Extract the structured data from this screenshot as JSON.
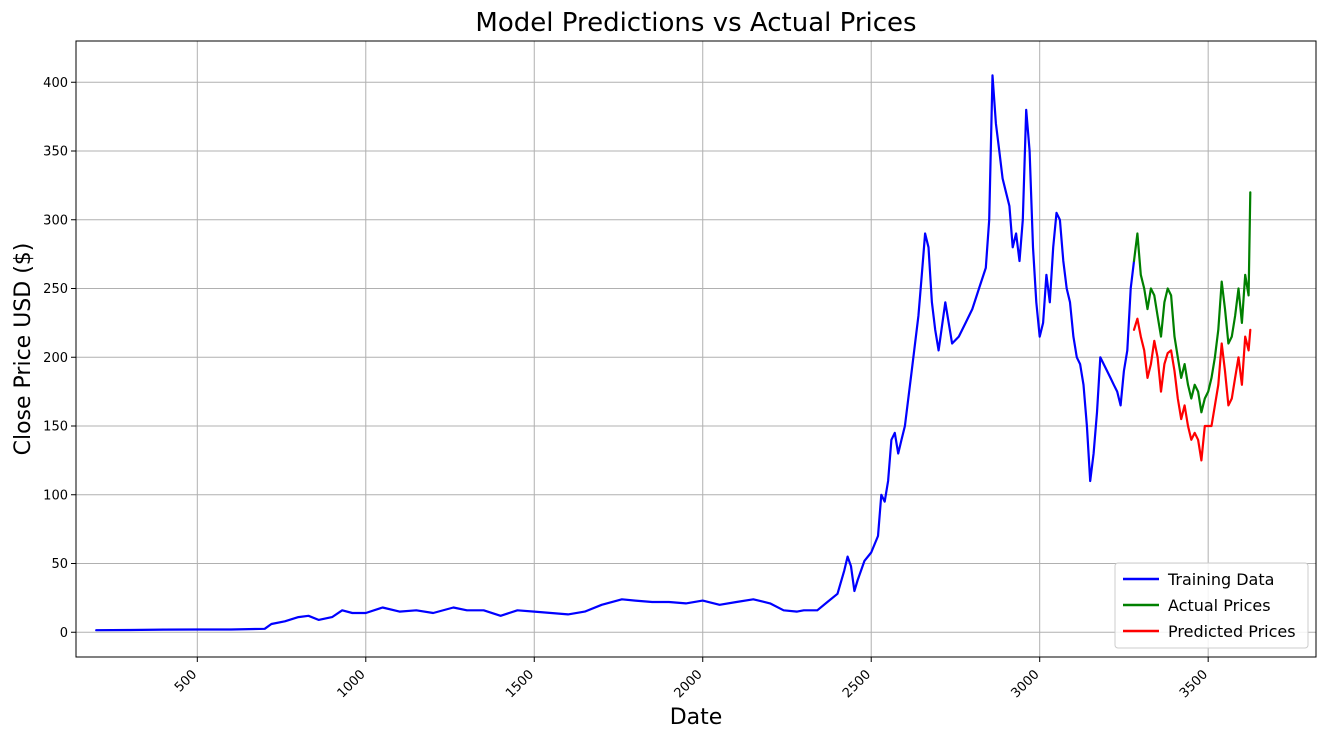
{
  "chart_data": {
    "type": "line",
    "title": "Model Predictions vs Actual Prices",
    "xlabel": "Date",
    "ylabel": "Close Price USD ($)",
    "xlim": [
      140,
      3820
    ],
    "ylim": [
      -18,
      430
    ],
    "xticks": [
      500,
      1000,
      1500,
      2000,
      2500,
      3000,
      3500
    ],
    "yticks": [
      0,
      50,
      100,
      150,
      200,
      250,
      300,
      350,
      400
    ],
    "grid": true,
    "legend_position": "bottom-right",
    "series": [
      {
        "name": "Training Data",
        "color": "#0000ff",
        "points": [
          [
            200,
            1.5
          ],
          [
            300,
            1.6
          ],
          [
            400,
            1.9
          ],
          [
            500,
            2
          ],
          [
            600,
            2
          ],
          [
            700,
            2.5
          ],
          [
            720,
            6
          ],
          [
            760,
            8
          ],
          [
            800,
            11
          ],
          [
            830,
            12
          ],
          [
            860,
            9
          ],
          [
            900,
            11
          ],
          [
            930,
            16
          ],
          [
            960,
            14
          ],
          [
            1000,
            14
          ],
          [
            1050,
            18
          ],
          [
            1100,
            15
          ],
          [
            1150,
            16
          ],
          [
            1200,
            14
          ],
          [
            1260,
            18
          ],
          [
            1300,
            16
          ],
          [
            1350,
            16
          ],
          [
            1400,
            12
          ],
          [
            1450,
            16
          ],
          [
            1500,
            15
          ],
          [
            1600,
            13
          ],
          [
            1650,
            15
          ],
          [
            1700,
            20
          ],
          [
            1760,
            24
          ],
          [
            1800,
            23
          ],
          [
            1850,
            22
          ],
          [
            1900,
            22
          ],
          [
            1950,
            21
          ],
          [
            2000,
            23
          ],
          [
            2050,
            20
          ],
          [
            2100,
            22
          ],
          [
            2150,
            24
          ],
          [
            2200,
            21
          ],
          [
            2240,
            16
          ],
          [
            2280,
            15
          ],
          [
            2300,
            16
          ],
          [
            2340,
            16
          ],
          [
            2370,
            22
          ],
          [
            2400,
            28
          ],
          [
            2420,
            45
          ],
          [
            2430,
            55
          ],
          [
            2440,
            48
          ],
          [
            2450,
            30
          ],
          [
            2460,
            38
          ],
          [
            2470,
            45
          ],
          [
            2480,
            52
          ],
          [
            2500,
            58
          ],
          [
            2520,
            70
          ],
          [
            2530,
            100
          ],
          [
            2540,
            95
          ],
          [
            2550,
            110
          ],
          [
            2560,
            140
          ],
          [
            2570,
            145
          ],
          [
            2580,
            130
          ],
          [
            2590,
            140
          ],
          [
            2600,
            150
          ],
          [
            2620,
            190
          ],
          [
            2640,
            230
          ],
          [
            2650,
            260
          ],
          [
            2660,
            290
          ],
          [
            2670,
            280
          ],
          [
            2680,
            240
          ],
          [
            2690,
            220
          ],
          [
            2700,
            205
          ],
          [
            2720,
            240
          ],
          [
            2740,
            210
          ],
          [
            2760,
            215
          ],
          [
            2780,
            225
          ],
          [
            2800,
            235
          ],
          [
            2820,
            250
          ],
          [
            2840,
            265
          ],
          [
            2850,
            300
          ],
          [
            2860,
            405
          ],
          [
            2870,
            370
          ],
          [
            2880,
            350
          ],
          [
            2890,
            330
          ],
          [
            2900,
            320
          ],
          [
            2910,
            310
          ],
          [
            2920,
            280
          ],
          [
            2930,
            290
          ],
          [
            2940,
            270
          ],
          [
            2950,
            300
          ],
          [
            2960,
            380
          ],
          [
            2970,
            350
          ],
          [
            2980,
            280
          ],
          [
            2990,
            240
          ],
          [
            3000,
            215
          ],
          [
            3010,
            225
          ],
          [
            3020,
            260
          ],
          [
            3030,
            240
          ],
          [
            3040,
            280
          ],
          [
            3050,
            305
          ],
          [
            3060,
            300
          ],
          [
            3070,
            270
          ],
          [
            3080,
            250
          ],
          [
            3090,
            240
          ],
          [
            3100,
            215
          ],
          [
            3110,
            200
          ],
          [
            3120,
            195
          ],
          [
            3130,
            180
          ],
          [
            3140,
            150
          ],
          [
            3150,
            110
          ],
          [
            3160,
            130
          ],
          [
            3170,
            160
          ],
          [
            3180,
            200
          ],
          [
            3190,
            195
          ],
          [
            3200,
            190
          ],
          [
            3210,
            185
          ],
          [
            3220,
            180
          ],
          [
            3230,
            175
          ],
          [
            3240,
            165
          ],
          [
            3250,
            190
          ],
          [
            3260,
            205
          ],
          [
            3270,
            250
          ],
          [
            3280,
            270
          ]
        ]
      },
      {
        "name": "Actual Prices",
        "color": "#008000",
        "points": [
          [
            3280,
            270
          ],
          [
            3290,
            290
          ],
          [
            3300,
            260
          ],
          [
            3310,
            250
          ],
          [
            3320,
            235
          ],
          [
            3330,
            250
          ],
          [
            3340,
            245
          ],
          [
            3350,
            230
          ],
          [
            3360,
            215
          ],
          [
            3370,
            240
          ],
          [
            3380,
            250
          ],
          [
            3390,
            245
          ],
          [
            3400,
            215
          ],
          [
            3410,
            200
          ],
          [
            3420,
            185
          ],
          [
            3430,
            195
          ],
          [
            3440,
            180
          ],
          [
            3450,
            170
          ],
          [
            3460,
            180
          ],
          [
            3470,
            175
          ],
          [
            3480,
            160
          ],
          [
            3490,
            170
          ],
          [
            3500,
            175
          ],
          [
            3510,
            185
          ],
          [
            3520,
            200
          ],
          [
            3530,
            220
          ],
          [
            3540,
            255
          ],
          [
            3550,
            235
          ],
          [
            3560,
            210
          ],
          [
            3570,
            215
          ],
          [
            3580,
            230
          ],
          [
            3590,
            250
          ],
          [
            3600,
            225
          ],
          [
            3610,
            260
          ],
          [
            3620,
            245
          ],
          [
            3625,
            320
          ]
        ]
      },
      {
        "name": "Predicted Prices",
        "color": "#ff0000",
        "points": [
          [
            3280,
            220
          ],
          [
            3290,
            228
          ],
          [
            3300,
            215
          ],
          [
            3310,
            205
          ],
          [
            3320,
            185
          ],
          [
            3330,
            195
          ],
          [
            3340,
            212
          ],
          [
            3350,
            200
          ],
          [
            3360,
            175
          ],
          [
            3370,
            195
          ],
          [
            3380,
            203
          ],
          [
            3390,
            205
          ],
          [
            3400,
            190
          ],
          [
            3410,
            170
          ],
          [
            3420,
            155
          ],
          [
            3430,
            165
          ],
          [
            3440,
            150
          ],
          [
            3450,
            140
          ],
          [
            3460,
            145
          ],
          [
            3470,
            140
          ],
          [
            3480,
            125
          ],
          [
            3490,
            150
          ],
          [
            3500,
            150
          ],
          [
            3510,
            150
          ],
          [
            3520,
            165
          ],
          [
            3530,
            180
          ],
          [
            3540,
            210
          ],
          [
            3550,
            190
          ],
          [
            3560,
            165
          ],
          [
            3570,
            170
          ],
          [
            3580,
            185
          ],
          [
            3590,
            200
          ],
          [
            3600,
            180
          ],
          [
            3610,
            215
          ],
          [
            3620,
            205
          ],
          [
            3625,
            220
          ]
        ]
      }
    ]
  }
}
